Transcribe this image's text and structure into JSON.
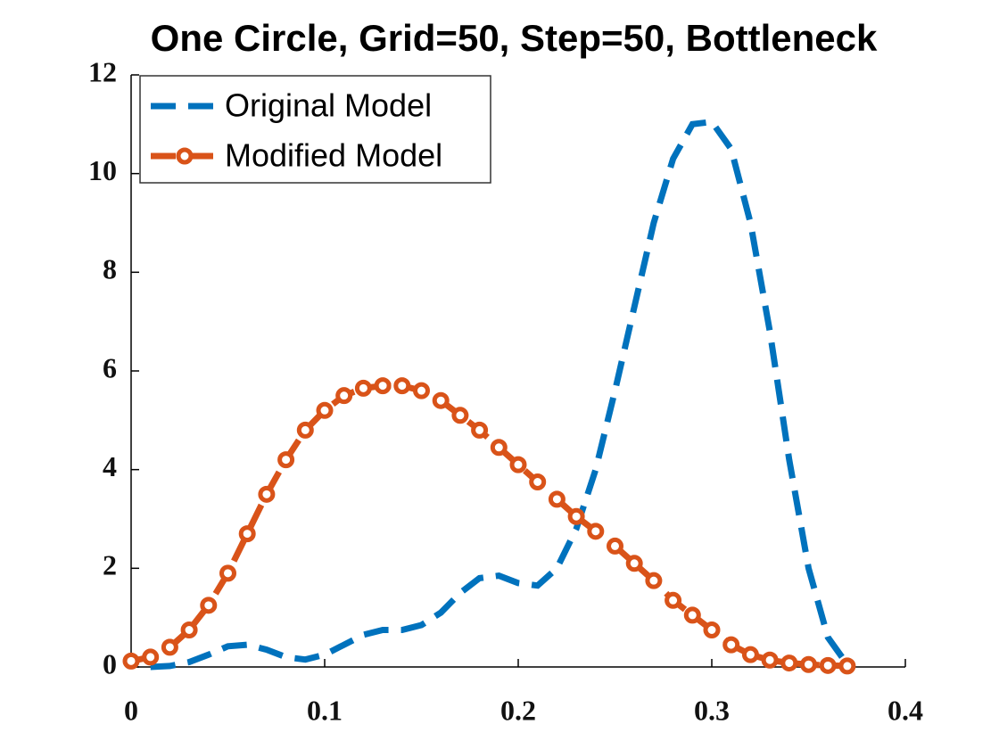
{
  "chart_data": {
    "type": "line",
    "title": "One Circle, Grid=50, Step=50, Bottleneck",
    "xlim": [
      0,
      0.4
    ],
    "xticks": [
      0,
      0.1,
      0.2,
      0.3,
      0.4
    ],
    "ylim": [
      0,
      12
    ],
    "yticks": [
      0,
      2,
      4,
      6,
      8,
      10,
      12
    ],
    "legend": "upper left",
    "series": [
      {
        "name": "Original Model",
        "color": "#0072bd",
        "style": "dashed",
        "x": [
          0.01,
          0.02,
          0.03,
          0.04,
          0.05,
          0.06,
          0.07,
          0.08,
          0.09,
          0.1,
          0.11,
          0.12,
          0.13,
          0.14,
          0.15,
          0.16,
          0.17,
          0.18,
          0.19,
          0.2,
          0.21,
          0.22,
          0.23,
          0.24,
          0.25,
          0.26,
          0.27,
          0.28,
          0.29,
          0.3,
          0.31,
          0.32,
          0.33,
          0.34,
          0.35,
          0.36,
          0.37
        ],
        "values": [
          0,
          0.02,
          0.1,
          0.25,
          0.42,
          0.45,
          0.35,
          0.2,
          0.15,
          0.25,
          0.45,
          0.65,
          0.75,
          0.75,
          0.85,
          1.1,
          1.5,
          1.8,
          1.85,
          1.7,
          1.65,
          2.0,
          2.8,
          4.0,
          5.6,
          7.3,
          9.0,
          10.3,
          11.0,
          11.05,
          10.5,
          9.0,
          6.8,
          4.2,
          2.0,
          0.6,
          0.05
        ]
      },
      {
        "name": "Modified Model",
        "color": "#d95319",
        "style": "dashed-circle",
        "x": [
          0,
          0.01,
          0.02,
          0.03,
          0.04,
          0.05,
          0.06,
          0.07,
          0.08,
          0.09,
          0.1,
          0.11,
          0.12,
          0.13,
          0.14,
          0.15,
          0.16,
          0.17,
          0.18,
          0.19,
          0.2,
          0.21,
          0.22,
          0.23,
          0.24,
          0.25,
          0.26,
          0.27,
          0.28,
          0.29,
          0.3,
          0.31,
          0.32,
          0.33,
          0.34,
          0.35,
          0.36,
          0.37
        ],
        "values": [
          0.12,
          0.2,
          0.4,
          0.75,
          1.25,
          1.9,
          2.7,
          3.5,
          4.2,
          4.8,
          5.2,
          5.5,
          5.65,
          5.7,
          5.7,
          5.6,
          5.4,
          5.1,
          4.8,
          4.45,
          4.1,
          3.75,
          3.4,
          3.05,
          2.75,
          2.45,
          2.1,
          1.75,
          1.35,
          1.05,
          0.75,
          0.45,
          0.25,
          0.14,
          0.08,
          0.05,
          0.03,
          0.02
        ]
      }
    ]
  }
}
